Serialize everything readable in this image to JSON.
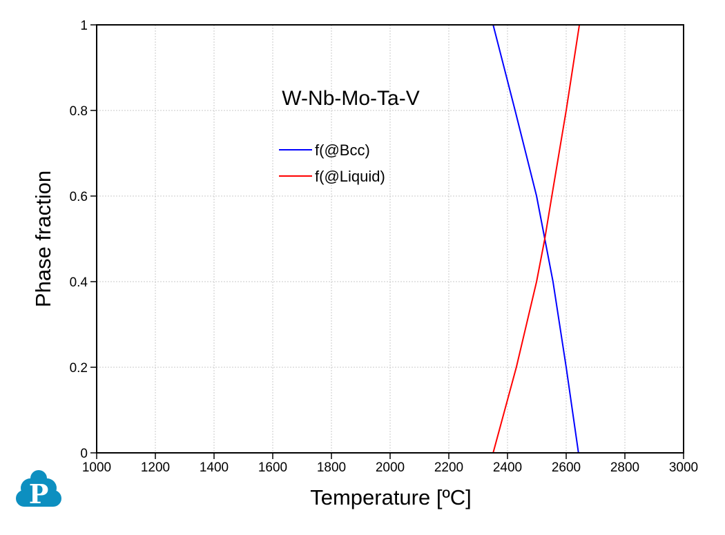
{
  "chart_data": {
    "type": "line",
    "title": "W-Nb-Mo-Ta-V",
    "xlabel": "Temperature [ºC]",
    "ylabel": "Phase fraction",
    "xlim": [
      1000,
      3000
    ],
    "ylim": [
      0,
      1
    ],
    "xticks": [
      1000,
      1200,
      1400,
      1600,
      1800,
      2000,
      2200,
      2400,
      2600,
      2800,
      3000
    ],
    "xtick_labels": [
      "1000",
      "1200",
      "1400",
      "1600",
      "1800",
      "2000",
      "2200",
      "2400",
      "2600",
      "2800",
      "3000"
    ],
    "yticks": [
      0,
      0.2,
      0.4,
      0.6,
      0.8,
      1
    ],
    "ytick_labels": [
      "0",
      "0.2",
      "0.4",
      "0.6",
      "0.8",
      "1"
    ],
    "grid": true,
    "legend_position": "upper-center",
    "series": [
      {
        "name": "f(@Bcc)",
        "color": "#0000ff",
        "x": [
          1000,
          2351,
          2426,
          2499,
          2527,
          2555,
          2600,
          2642,
          3000
        ],
        "y": [
          1,
          1,
          0.8,
          0.6,
          0.5,
          0.4,
          0.2,
          0,
          0
        ]
      },
      {
        "name": "f(@Liquid)",
        "color": "#ff0000",
        "x": [
          1000,
          2351,
          2430,
          2499,
          2527,
          2551,
          2600,
          2645,
          3000
        ],
        "y": [
          0,
          0,
          0.2,
          0.4,
          0.5,
          0.6,
          0.8,
          1,
          1
        ]
      }
    ]
  },
  "logo": {
    "letter": "P",
    "color": "#0d8fc0"
  }
}
